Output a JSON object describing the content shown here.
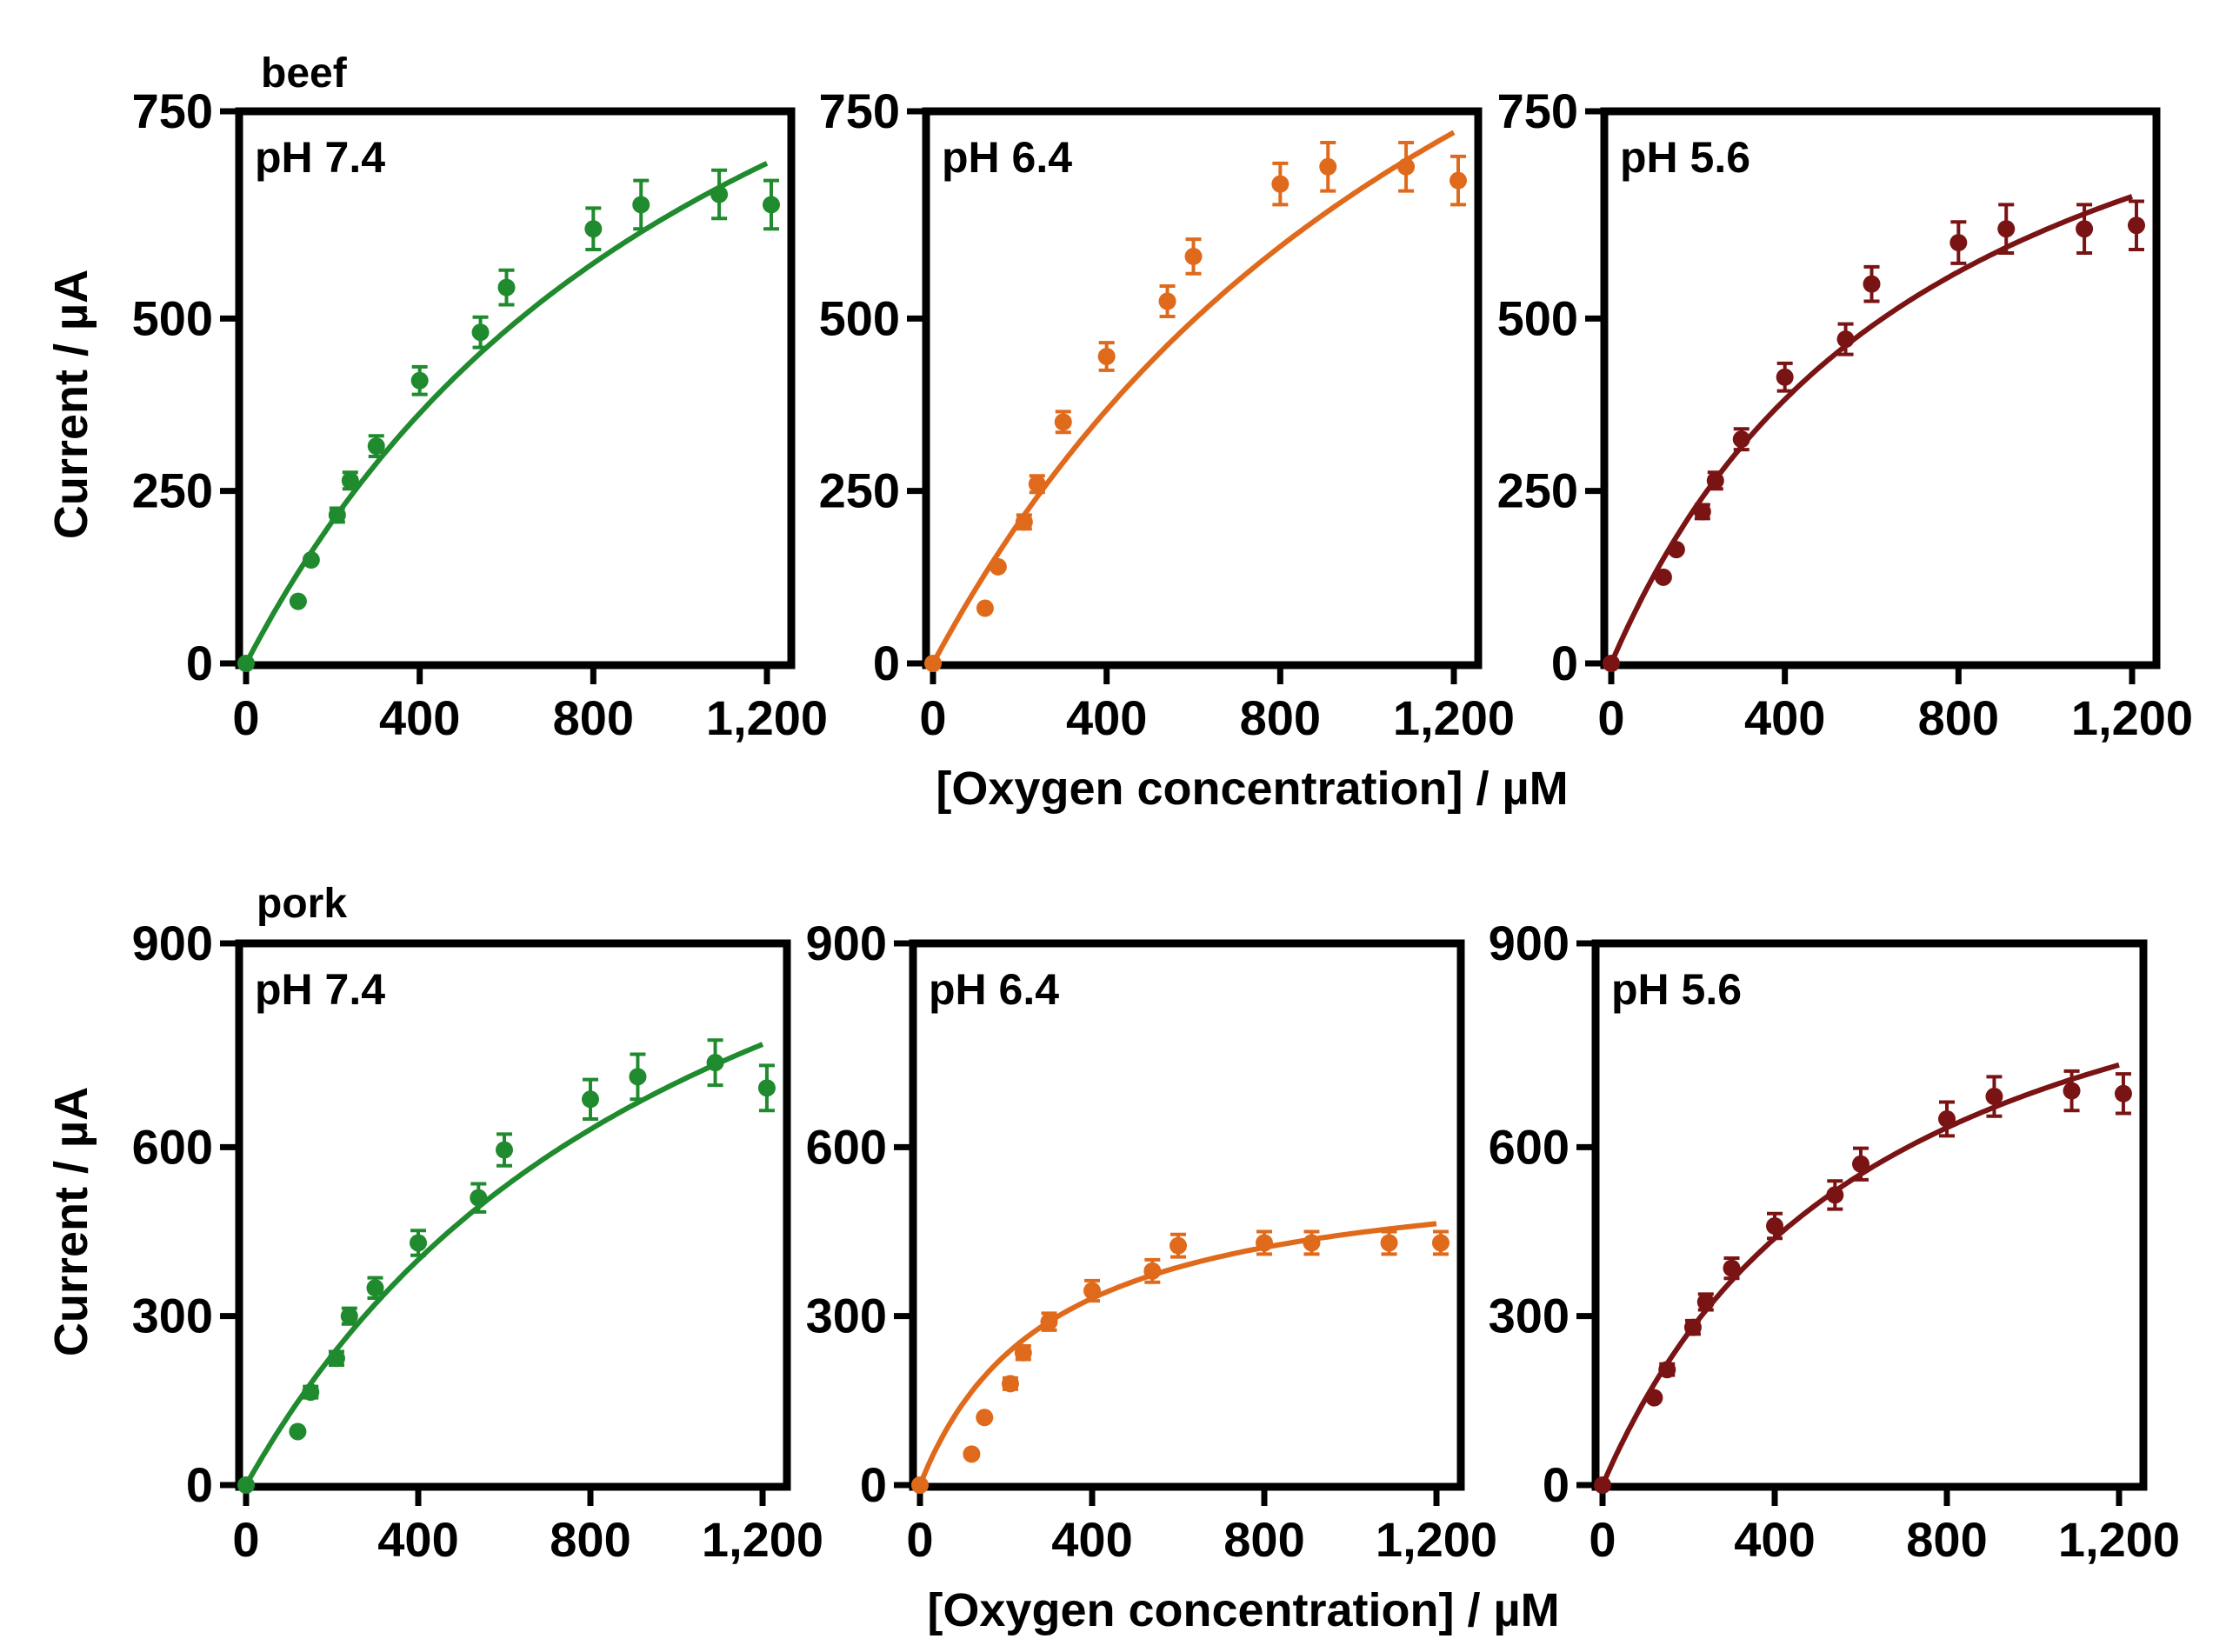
{
  "labels": {
    "x_axis_title": "[Oxygen concentration] / µM",
    "y_axis_title": "Current / µA"
  },
  "colors": {
    "pH 7.4": "#1f8a2e",
    "pH 6.4": "#e06a1c",
    "pH 5.6": "#7a1414"
  },
  "chart_data": [
    {
      "type": "scatter",
      "group": "beef",
      "panel_label": "pH 7.4",
      "xlim": [
        0,
        1200
      ],
      "ylim": [
        0,
        750
      ],
      "x_ticks": [
        "0",
        "400",
        "800",
        "1,200"
      ],
      "y_ticks": [
        "0",
        "250",
        "500",
        "750"
      ],
      "fit": "saturation",
      "x": [
        0,
        120,
        150,
        210,
        240,
        300,
        400,
        540,
        600,
        800,
        910,
        1090,
        1210
      ],
      "y": [
        0,
        90,
        150,
        215,
        265,
        315,
        410,
        480,
        545,
        630,
        665,
        680,
        665
      ],
      "err": [
        5,
        6,
        8,
        10,
        12,
        15,
        20,
        22,
        25,
        30,
        35,
        35,
        35
      ],
      "fit_params": {
        "vmax": 1450,
        "k": 1200
      }
    },
    {
      "type": "scatter",
      "group": "beef",
      "panel_label": "pH 6.4",
      "xlim": [
        0,
        1200
      ],
      "ylim": [
        0,
        750
      ],
      "x_ticks": [
        "0",
        "400",
        "800",
        "1,200"
      ],
      "y_ticks": [
        "0",
        "250",
        "500",
        "750"
      ],
      "fit": "saturation",
      "x": [
        0,
        120,
        150,
        210,
        240,
        300,
        400,
        540,
        600,
        800,
        910,
        1090,
        1210
      ],
      "y": [
        0,
        80,
        140,
        205,
        260,
        350,
        445,
        525,
        590,
        695,
        720,
        720,
        700
      ],
      "err": [
        5,
        6,
        8,
        10,
        12,
        15,
        20,
        22,
        25,
        30,
        35,
        35,
        35
      ],
      "fit_params": {
        "vmax": 1700,
        "k": 1450
      }
    },
    {
      "type": "scatter",
      "group": "beef",
      "panel_label": "pH 5.6",
      "xlim": [
        0,
        1200
      ],
      "ylim": [
        0,
        750
      ],
      "x_ticks": [
        "0",
        "400",
        "800",
        "1,200"
      ],
      "y_ticks": [
        "0",
        "250",
        "500",
        "750"
      ],
      "fit": "saturation",
      "x": [
        0,
        120,
        150,
        210,
        240,
        300,
        400,
        540,
        600,
        800,
        910,
        1090,
        1210
      ],
      "y": [
        0,
        125,
        165,
        220,
        265,
        325,
        415,
        470,
        550,
        610,
        630,
        630,
        635
      ],
      "err": [
        5,
        6,
        8,
        10,
        12,
        15,
        20,
        22,
        25,
        30,
        35,
        35,
        35
      ],
      "fit_params": {
        "vmax": 1100,
        "k": 750
      }
    },
    {
      "type": "scatter",
      "group": "pork",
      "panel_label": "pH 7.4",
      "xlim": [
        0,
        1200
      ],
      "ylim": [
        0,
        900
      ],
      "x_ticks": [
        "0",
        "400",
        "800",
        "1,200"
      ],
      "y_ticks": [
        "0",
        "300",
        "600",
        "900"
      ],
      "fit": "saturation",
      "x": [
        0,
        120,
        150,
        210,
        240,
        300,
        400,
        540,
        600,
        800,
        910,
        1090,
        1210
      ],
      "y": [
        0,
        95,
        165,
        225,
        300,
        350,
        430,
        510,
        595,
        685,
        725,
        750,
        705
      ],
      "err": [
        6,
        8,
        10,
        12,
        14,
        18,
        22,
        25,
        28,
        35,
        40,
        40,
        40
      ],
      "fit_params": {
        "vmax": 1500,
        "k": 1100
      }
    },
    {
      "type": "scatter",
      "group": "pork",
      "panel_label": "pH 6.4",
      "xlim": [
        0,
        1200
      ],
      "ylim": [
        0,
        900
      ],
      "x_ticks": [
        "0",
        "400",
        "800",
        "1,200"
      ],
      "y_ticks": [
        "0",
        "300",
        "600",
        "900"
      ],
      "fit": "saturation",
      "x": [
        0,
        120,
        150,
        210,
        240,
        300,
        400,
        540,
        600,
        800,
        910,
        1090,
        1210
      ],
      "y": [
        0,
        55,
        120,
        180,
        235,
        290,
        345,
        380,
        425,
        430,
        430,
        430,
        430
      ],
      "err": [
        5,
        6,
        8,
        10,
        12,
        15,
        18,
        20,
        20,
        20,
        20,
        20,
        20
      ],
      "fit_params": {
        "vmax": 580,
        "k": 300
      }
    },
    {
      "type": "scatter",
      "group": "pork",
      "panel_label": "pH 5.6",
      "xlim": [
        0,
        1200
      ],
      "ylim": [
        0,
        900
      ],
      "x_ticks": [
        "0",
        "400",
        "800",
        "1,200"
      ],
      "y_ticks": [
        "0",
        "300",
        "600",
        "900"
      ],
      "fit": "saturation",
      "x": [
        0,
        120,
        150,
        210,
        240,
        300,
        400,
        540,
        600,
        800,
        910,
        1090,
        1210
      ],
      "y": [
        0,
        155,
        205,
        280,
        325,
        385,
        460,
        515,
        570,
        650,
        690,
        700,
        695
      ],
      "err": [
        6,
        8,
        10,
        12,
        14,
        18,
        22,
        25,
        28,
        30,
        35,
        35,
        35
      ],
      "fit_params": {
        "vmax": 1150,
        "k": 650
      }
    }
  ]
}
